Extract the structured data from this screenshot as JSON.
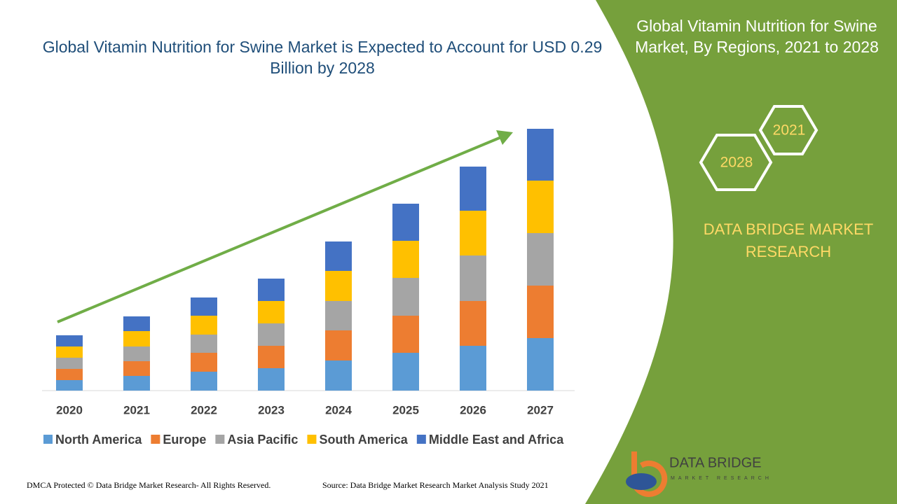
{
  "chart_data": {
    "type": "stacked_bar",
    "title": "Global Vitamin Nutrition for Swine Market is Expected to Account for USD 0.29 Billion by 2028",
    "categories": [
      "2020",
      "2021",
      "2022",
      "2023",
      "2024",
      "2025",
      "2026",
      "2027"
    ],
    "series": [
      {
        "name": "North America",
        "color": "#5b9bd5",
        "values": [
          15,
          21,
          27,
          32,
          43,
          54,
          64,
          75
        ]
      },
      {
        "name": "Europe",
        "color": "#ed7d31",
        "values": [
          16,
          21,
          27,
          32,
          43,
          53,
          64,
          75
        ]
      },
      {
        "name": "Asia Pacific",
        "color": "#a5a5a5",
        "values": [
          16,
          21,
          26,
          32,
          42,
          54,
          65,
          75
        ]
      },
      {
        "name": "South America",
        "color": "#ffc000",
        "values": [
          16,
          22,
          27,
          32,
          43,
          53,
          64,
          75
        ]
      },
      {
        "name": "Middle East and Africa",
        "color": "#4472c4",
        "values": [
          16,
          21,
          26,
          32,
          42,
          53,
          63,
          74
        ]
      }
    ],
    "ylim": [
      0,
      400
    ],
    "legend": "bottom"
  },
  "side_panel": {
    "title": "Global Vitamin Nutrition for Swine Market, By Regions, 2021 to 2028",
    "hex_years": [
      "2021",
      "2028"
    ],
    "brand": "DATA BRIDGE MARKET RESEARCH"
  },
  "logo": {
    "name": "DATA BRIDGE",
    "tagline": "MARKET RESEARCH"
  },
  "footer": {
    "left": "DMCA Protected © Data Bridge Market Research- All Rights Reserved.",
    "right": "Source: Data Bridge Market Research Market Analysis Study 2021"
  }
}
